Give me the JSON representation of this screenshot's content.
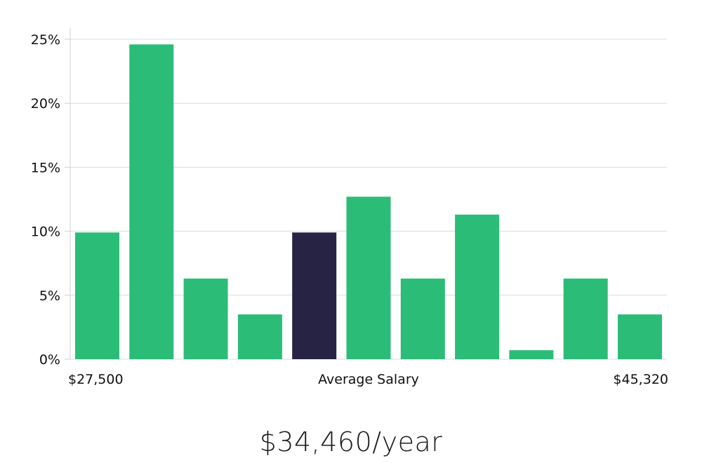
{
  "chart_data": {
    "type": "bar",
    "title": "",
    "xlabel": "Average Salary",
    "ylabel": "",
    "x_min_label": "$27,500",
    "x_max_label": "$45,320",
    "ylim": [
      0,
      25
    ],
    "yticks": [
      0,
      5,
      10,
      15,
      20,
      25
    ],
    "ytick_labels": [
      "0%",
      "5%",
      "10%",
      "15%",
      "20%",
      "25%"
    ],
    "grid": true,
    "values": [
      9.9,
      24.6,
      6.3,
      3.5,
      9.9,
      12.7,
      6.3,
      11.3,
      0.7,
      6.3,
      3.5
    ],
    "highlight_index": 4,
    "colors": {
      "bar": "#2bbd77",
      "highlight": "#272344",
      "grid": "#dcdcdc",
      "axis": "#cfcfcf"
    }
  },
  "summary": {
    "salary_text": "$34,460/year"
  }
}
